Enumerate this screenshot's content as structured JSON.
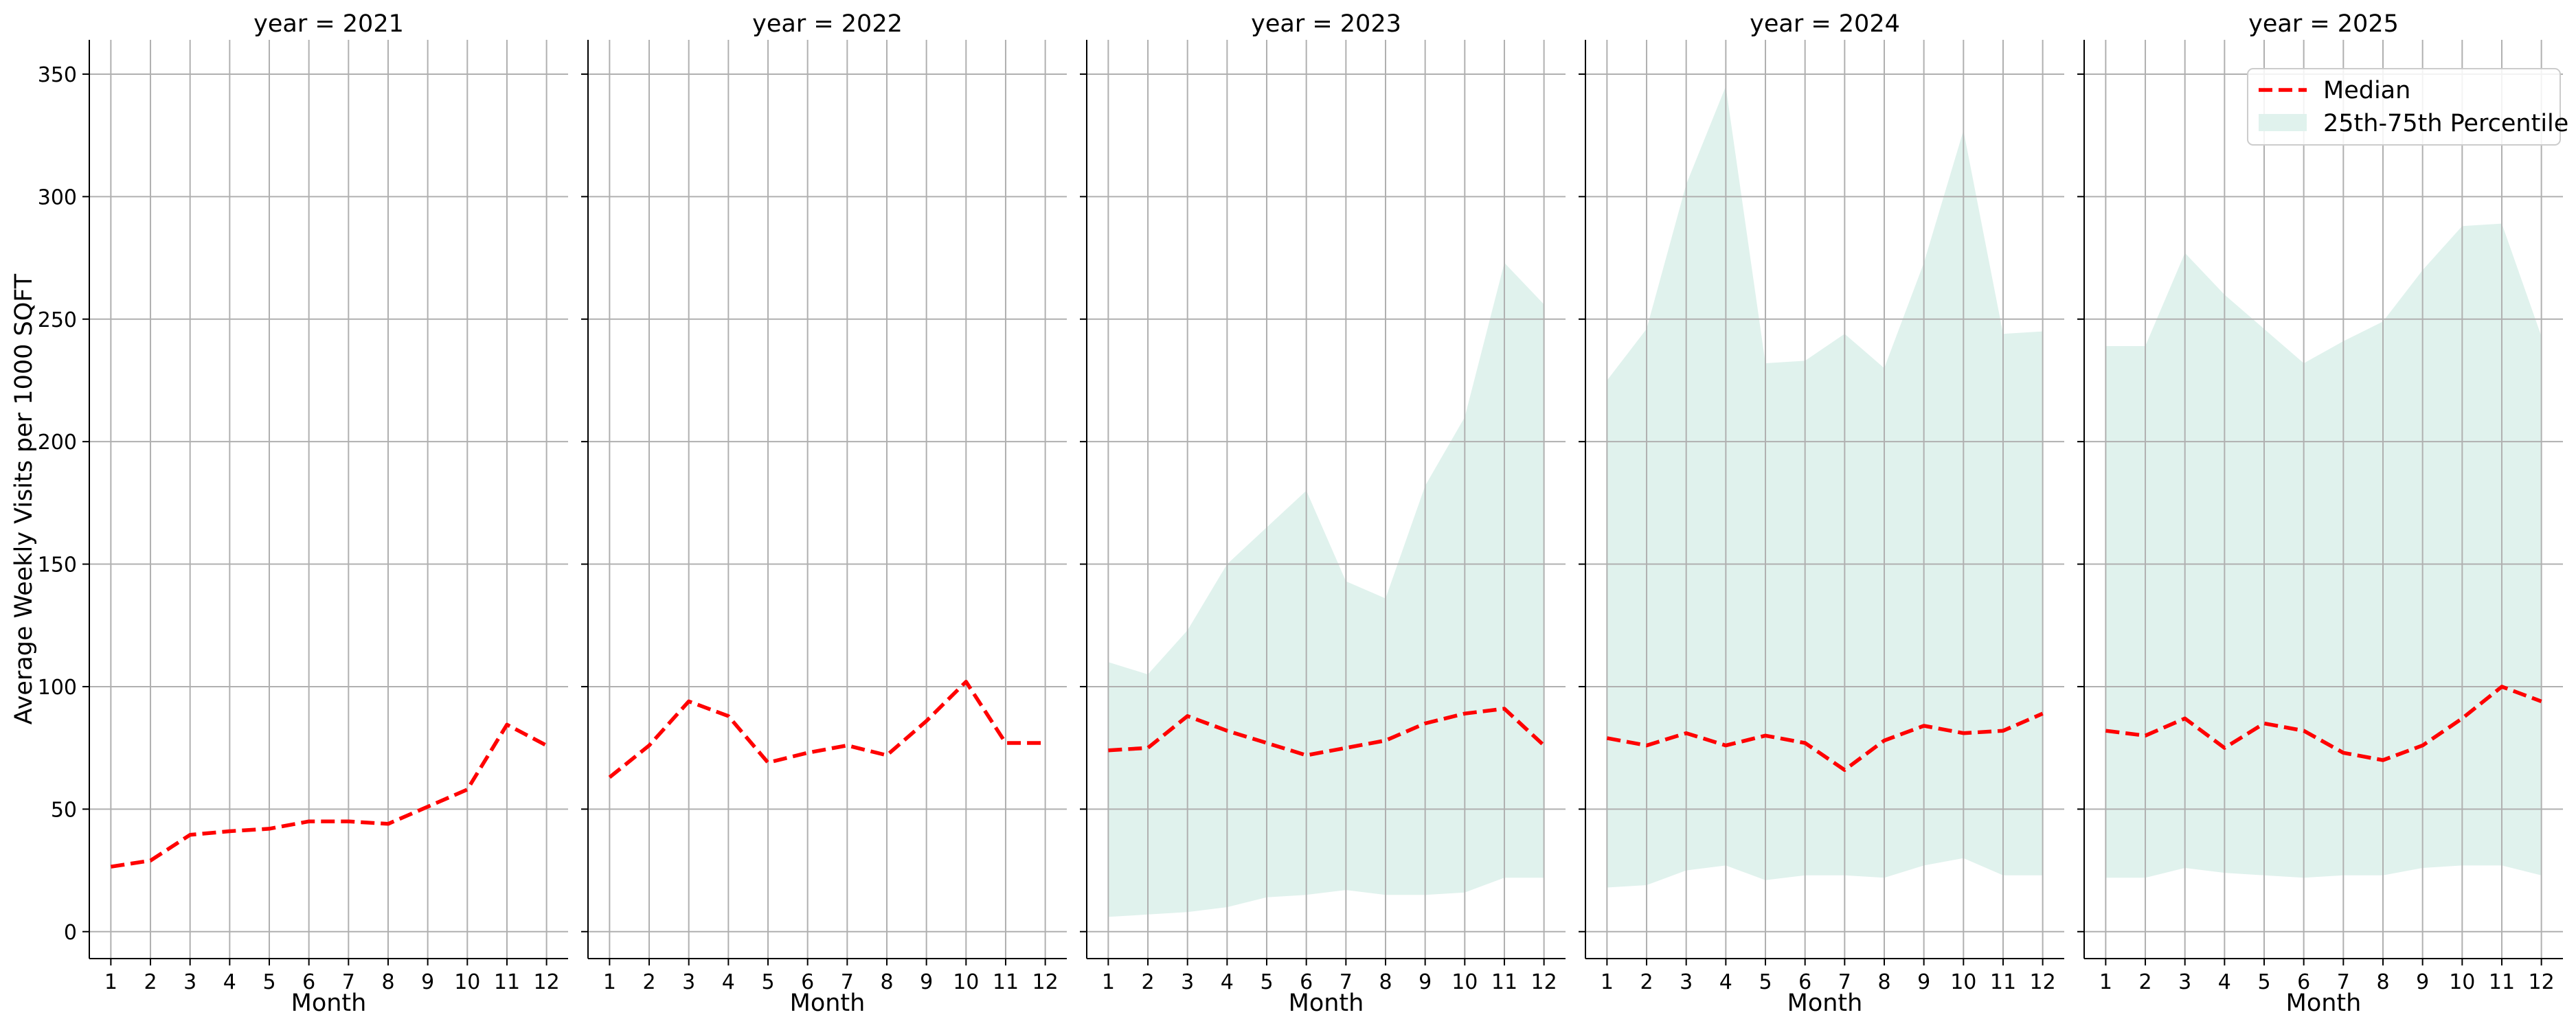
{
  "chart_data": {
    "type": "line",
    "ylabel": "Average Weekly Visits per 1000 SQFT",
    "xlabel": "Month",
    "x": [
      1,
      2,
      3,
      4,
      5,
      6,
      7,
      8,
      9,
      10,
      11,
      12
    ],
    "x_tick_labels": [
      "1",
      "2",
      "3",
      "4",
      "5",
      "6",
      "7",
      "8",
      "9",
      "10",
      "11",
      "12"
    ],
    "ylim": [
      -11,
      364
    ],
    "y_ticks": [
      0,
      50,
      100,
      150,
      200,
      250,
      300,
      350
    ],
    "y_tick_labels": [
      "0",
      "50",
      "100",
      "150",
      "200",
      "250",
      "300",
      "350"
    ],
    "grid": true,
    "legend": {
      "position": "top-right",
      "median_label": "Median",
      "band_label": "25th-75th Percentile"
    },
    "colors": {
      "median": "#ff0000",
      "band": "#e0f2ed",
      "grid": "#b0b0b0",
      "axis": "#000000"
    },
    "panels": [
      {
        "title": "year = 2021",
        "median": [
          26.5,
          29,
          39.5,
          41,
          42,
          45,
          45,
          44,
          51,
          58,
          84.5,
          76
        ],
        "p25": null,
        "p75": null
      },
      {
        "title": "year = 2022",
        "median": [
          63,
          76,
          94,
          88,
          69,
          73,
          76,
          72,
          86,
          102,
          77,
          77
        ],
        "p25": null,
        "p75": null
      },
      {
        "title": "year = 2023",
        "median": [
          74,
          75,
          88,
          82,
          77,
          72,
          75,
          78,
          85,
          89,
          91,
          76
        ],
        "p25": [
          6,
          7,
          8,
          10,
          14,
          15,
          17,
          15,
          15,
          16,
          22,
          22
        ],
        "p75": [
          110,
          105,
          123,
          150,
          165,
          180,
          143,
          136,
          182,
          210,
          273,
          256
        ]
      },
      {
        "title": "year = 2024",
        "median": [
          79,
          76,
          81,
          76,
          80,
          77,
          66,
          78,
          84,
          81,
          82,
          89
        ],
        "p25": [
          18,
          19,
          25,
          27,
          21,
          23,
          23,
          22,
          27,
          30,
          23,
          23
        ],
        "p75": [
          225,
          246,
          305,
          345,
          232,
          233,
          244,
          230,
          273,
          327,
          244,
          245
        ]
      },
      {
        "title": "year = 2025",
        "median": [
          82,
          80,
          87,
          75,
          85,
          82,
          73,
          70,
          76,
          87,
          100,
          94
        ],
        "p25": [
          22,
          22,
          26,
          24,
          23,
          22,
          23,
          23,
          26,
          27,
          27,
          23
        ],
        "p75": [
          239,
          239,
          277,
          260,
          246,
          232,
          241,
          249,
          270,
          288,
          289,
          243
        ]
      }
    ]
  }
}
